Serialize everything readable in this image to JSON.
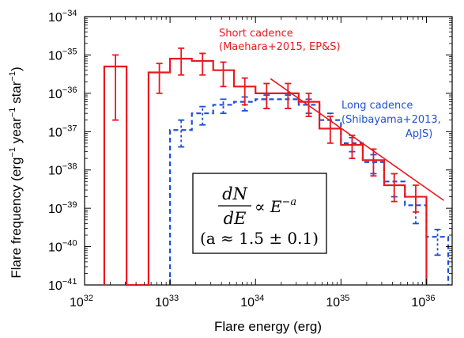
{
  "colors": {
    "short": "#e8191f",
    "long": "#1f4fd8",
    "axis": "#000000"
  },
  "chart_data": {
    "type": "line",
    "xscale": "log",
    "yscale": "log",
    "xlim": [
      1e+32,
      2e+36
    ],
    "ylim": [
      1e-41,
      1e-34
    ],
    "xlabel": "Flare energy (erg)",
    "ylabel": {
      "main": "Flare frequency (erg",
      "exp1": "−1",
      "mid1": " year",
      "exp2": "−1",
      "mid2": " star",
      "exp3": "−1",
      "end": ")"
    },
    "xticks": [
      {
        "value": 1e+32,
        "base": "10",
        "exp": "32"
      },
      {
        "value": 1e+33,
        "base": "10",
        "exp": "33"
      },
      {
        "value": 1e+34,
        "base": "10",
        "exp": "34"
      },
      {
        "value": 1e+35,
        "base": "10",
        "exp": "35"
      },
      {
        "value": 1e+36,
        "base": "10",
        "exp": "36"
      }
    ],
    "yticks": [
      {
        "value": 1e-34,
        "base": "10",
        "exp": "−34"
      },
      {
        "value": 1e-35,
        "base": "10",
        "exp": "−35"
      },
      {
        "value": 1e-36,
        "base": "10",
        "exp": "−36"
      },
      {
        "value": 1e-37,
        "base": "10",
        "exp": "−37"
      },
      {
        "value": 1e-38,
        "base": "10",
        "exp": "−38"
      },
      {
        "value": 1e-39,
        "base": "10",
        "exp": "−39"
      },
      {
        "value": 1e-40,
        "base": "10",
        "exp": "−40"
      },
      {
        "value": 1e-41,
        "base": "10",
        "exp": "−41"
      }
    ],
    "series": [
      {
        "name": "Short cadence",
        "style": "solid",
        "color": "#e8191f",
        "step_edges": [
          1.7e+32,
          3.1e+32,
          5.6e+32,
          1e+33,
          1.8e+33,
          3.2e+33,
          5.6e+33,
          1e+34,
          1.8e+34,
          3.2e+34,
          5.6e+34,
          1e+35,
          1.8e+35,
          3.2e+35,
          5.6e+35,
          1e+36
        ],
        "step_values": [
          5e-36,
          0,
          3.5e-36,
          8e-36,
          7e-36,
          4e-36,
          1.5e-36,
          1e-36,
          1e-36,
          6e-37,
          1.2e-37,
          4.5e-38,
          1.8e-38,
          4e-39,
          2e-39
        ],
        "points": [
          {
            "x": 2.3e+32,
            "y": 5e-36,
            "lo": 2e-37,
            "hi": 1e-35
          },
          {
            "x": 7.5e+32,
            "y": 3.5e-36,
            "lo": 1e-36,
            "hi": 6e-36
          },
          {
            "x": 1.35e+33,
            "y": 8e-36,
            "lo": 3e-36,
            "hi": 1.5e-35
          },
          {
            "x": 2.4e+33,
            "y": 7e-36,
            "lo": 3e-36,
            "hi": 1.1e-35
          },
          {
            "x": 4.2e+33,
            "y": 4e-36,
            "lo": 1.5e-36,
            "hi": 6.5e-36
          },
          {
            "x": 7.5e+33,
            "y": 1.5e-36,
            "lo": 5e-37,
            "hi": 2.5e-36
          },
          {
            "x": 1.35e+34,
            "y": 1e-36,
            "lo": 4e-37,
            "hi": 1.8e-36
          },
          {
            "x": 2.4e+34,
            "y": 1e-36,
            "lo": 4e-37,
            "hi": 1.8e-36
          },
          {
            "x": 4.2e+34,
            "y": 6e-37,
            "lo": 2.5e-37,
            "hi": 1e-36
          },
          {
            "x": 7.5e+34,
            "y": 1.2e-37,
            "lo": 5e-38,
            "hi": 2.5e-37
          },
          {
            "x": 1.35e+35,
            "y": 4.5e-38,
            "lo": 2e-38,
            "hi": 8e-38
          },
          {
            "x": 2.4e+35,
            "y": 1.8e-38,
            "lo": 7e-39,
            "hi": 3.5e-38
          },
          {
            "x": 4.2e+35,
            "y": 4e-39,
            "lo": 1.5e-39,
            "hi": 8e-39
          },
          {
            "x": 7.5e+35,
            "y": 2e-39,
            "lo": 8e-40,
            "hi": 4e-39
          }
        ]
      },
      {
        "name": "Long cadence",
        "style": "dashed",
        "color": "#1f4fd8",
        "step_edges": [
          1e+33,
          1.8e+33,
          3.2e+33,
          5.6e+33,
          1e+34,
          1.8e+34,
          3.2e+34,
          5.6e+34,
          1e+35,
          1.8e+35,
          3.2e+35,
          5.6e+35,
          1e+36,
          1.8e+36
        ],
        "step_values": [
          1.1e-37,
          3e-37,
          5e-37,
          6e-37,
          7e-37,
          7e-37,
          5e-37,
          2e-37,
          5e-38,
          1.6e-38,
          5e-39,
          1.2e-39,
          1.8e-40
        ],
        "points": [
          {
            "x": 1.35e+33,
            "y": 1.1e-37,
            "lo": 4e-38,
            "hi": 2e-37
          },
          {
            "x": 2.4e+33,
            "y": 3e-37,
            "lo": 1.5e-37,
            "hi": 4.5e-37
          },
          {
            "x": 4.2e+33,
            "y": 5e-37,
            "lo": 3e-37,
            "hi": 7e-37
          },
          {
            "x": 7.5e+33,
            "y": 6e-37,
            "lo": 3.5e-37,
            "hi": 8e-37
          },
          {
            "x": 1.35e+34,
            "y": 7e-37,
            "lo": 4e-37,
            "hi": 9e-37
          },
          {
            "x": 2.4e+34,
            "y": 7e-37,
            "lo": 4e-37,
            "hi": 9e-37
          },
          {
            "x": 4.2e+34,
            "y": 5e-37,
            "lo": 3e-37,
            "hi": 7e-37
          },
          {
            "x": 7.5e+34,
            "y": 2e-37,
            "lo": 1.2e-37,
            "hi": 3e-37
          },
          {
            "x": 1.35e+35,
            "y": 5e-38,
            "lo": 3e-38,
            "hi": 7e-38
          },
          {
            "x": 2.4e+35,
            "y": 1.6e-38,
            "lo": 8e-39,
            "hi": 2.5e-38
          },
          {
            "x": 4.2e+35,
            "y": 5e-39,
            "lo": 2e-39,
            "hi": 8e-39
          },
          {
            "x": 7.5e+35,
            "y": 1.2e-39,
            "lo": 4e-40,
            "hi": 2e-39
          },
          {
            "x": 1.35e+36,
            "y": 1.8e-40,
            "lo": 6e-41,
            "hi": 2.8e-40
          }
        ]
      }
    ],
    "fit_line": {
      "x": [
        1.5e+34,
        1.6e+36
      ],
      "y": [
        2.4e-36,
        1.6e-39
      ],
      "color": "#e8191f"
    },
    "annotations": [
      {
        "id": "short",
        "lines": [
          "Short cadence",
          "(Maehara+2015, EP&S)"
        ]
      },
      {
        "id": "long",
        "lines": [
          "Long cadence",
          "(Shibayama+2013,",
          "ApJS)"
        ]
      }
    ],
    "equation": {
      "numerator": "dN",
      "denominator": "dE",
      "relation": "∝ E",
      "exponent": "−a",
      "condition": "(a ≈ 1.5 ± 0.1)"
    }
  }
}
